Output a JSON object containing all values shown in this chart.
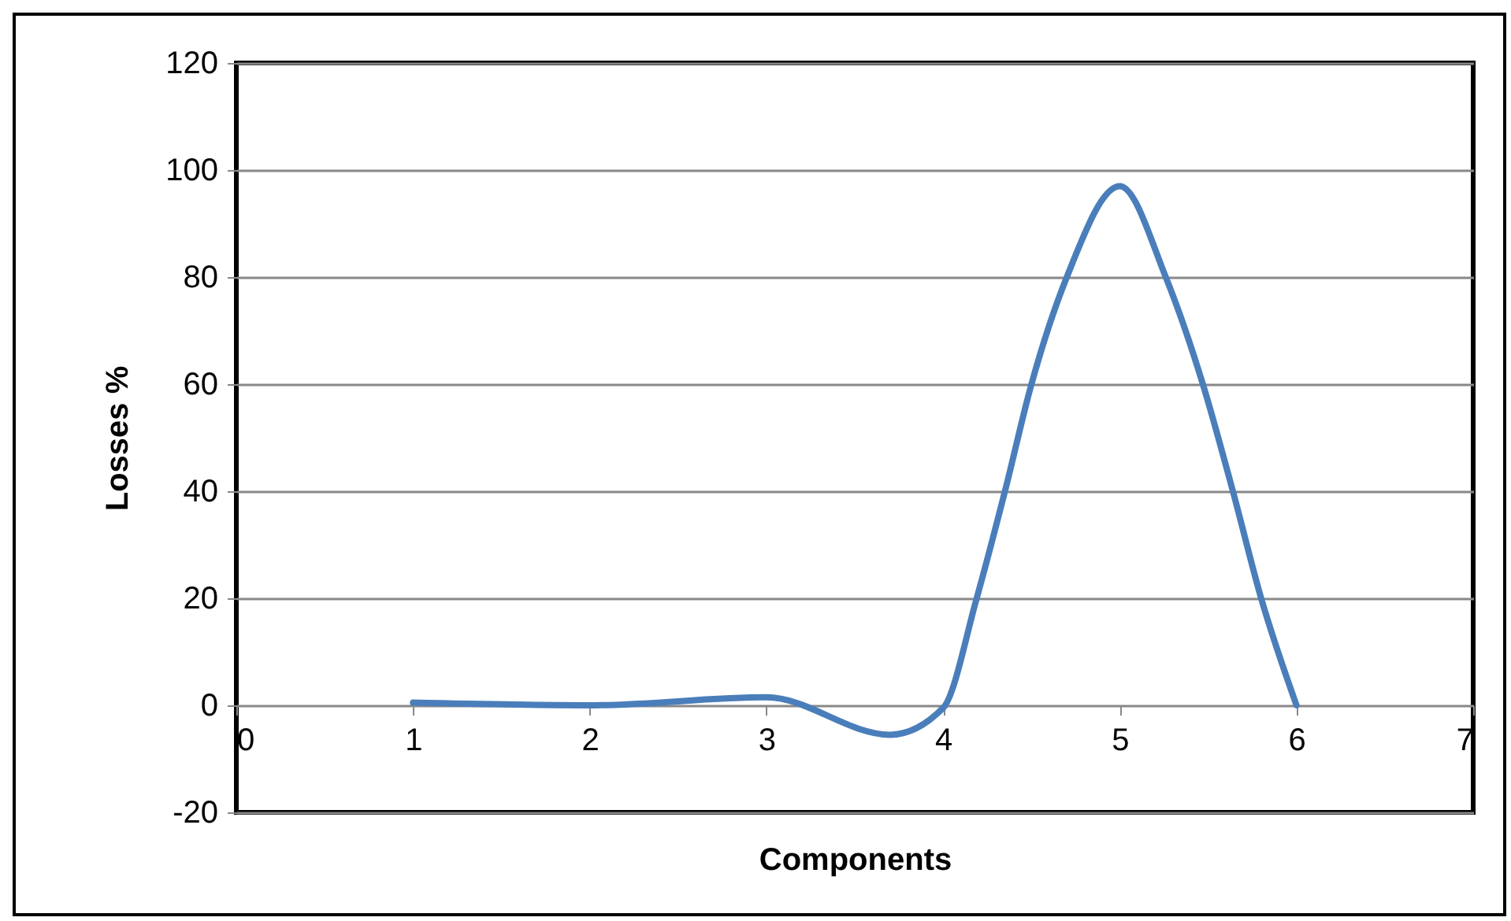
{
  "chart_data": {
    "type": "line",
    "xlabel": "Components",
    "ylabel": "Losses %",
    "x": [
      1,
      2,
      3,
      3.7,
      4,
      4.19,
      4.35,
      4.5,
      4.7,
      5,
      5.26,
      5.47,
      5.64,
      5.8,
      6
    ],
    "series": [
      {
        "color": "#4a7ebb",
        "values": [
          0.5,
          0,
          1.5,
          -5.5,
          -0.5,
          20,
          40,
          60,
          80,
          97,
          80,
          60,
          40,
          20,
          0
        ]
      }
    ],
    "xlim": [
      0,
      7
    ],
    "xticks": [
      0,
      1,
      2,
      3,
      4,
      5,
      6,
      7
    ],
    "ylim": [
      -20,
      120
    ],
    "yticks": [
      -20,
      0,
      20,
      40,
      60,
      80,
      100,
      120
    ],
    "grid": "y",
    "marker": "none",
    "line_style": "solid"
  }
}
